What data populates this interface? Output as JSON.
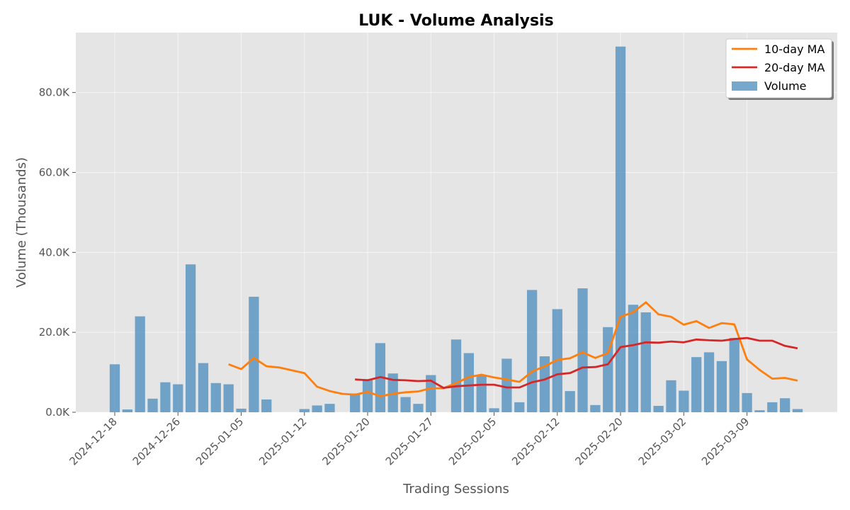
{
  "chart_data": {
    "type": "bar",
    "title": "LUK - Volume Analysis",
    "xlabel": "Trading Sessions",
    "ylabel": "Volume (Thousands)",
    "ylim": [
      0,
      95000
    ],
    "yticks": [
      0,
      20000,
      40000,
      60000,
      80000
    ],
    "ytick_labels": [
      "0.0K",
      "20.0K",
      "40.0K",
      "60.0K",
      "80.0K"
    ],
    "xticks": [
      {
        "index": 0,
        "label": "2024-12-18"
      },
      {
        "index": 5,
        "label": "2024-12-26"
      },
      {
        "index": 10,
        "label": "2025-01-05"
      },
      {
        "index": 15,
        "label": "2025-01-12"
      },
      {
        "index": 20,
        "label": "2025-01-20"
      },
      {
        "index": 25,
        "label": "2025-01-27"
      },
      {
        "index": 30,
        "label": "2025-02-05"
      },
      {
        "index": 35,
        "label": "2025-02-12"
      },
      {
        "index": 40,
        "label": "2025-02-20"
      },
      {
        "index": 45,
        "label": "2025-03-02"
      },
      {
        "index": 50,
        "label": "2025-03-09"
      }
    ],
    "grid": true,
    "legend_position": "top-right",
    "series": [
      {
        "name": "Volume",
        "kind": "bar",
        "color": "#4f8fc0",
        "values": [
          12000,
          700,
          24000,
          3400,
          7500,
          7000,
          37000,
          12300,
          7300,
          7000,
          900,
          28900,
          3200,
          0,
          0,
          800,
          1700,
          2100,
          0,
          4700,
          8300,
          17300,
          9700,
          3800,
          2100,
          9300,
          0,
          18200,
          14800,
          9200,
          1000,
          13400,
          2500,
          30600,
          14000,
          25800,
          5300,
          31000,
          1800,
          21300,
          91500,
          26900,
          25000,
          1600,
          8000,
          5400,
          13800,
          15000,
          12800,
          18600,
          4800,
          500,
          2500,
          3500,
          800
        ]
      },
      {
        "name": "10-day MA",
        "kind": "line",
        "color": "#ff7f0e",
        "values": [
          null,
          null,
          null,
          null,
          null,
          null,
          null,
          null,
          null,
          12000,
          10800,
          13600,
          11500,
          11200,
          10500,
          9800,
          6400,
          5300,
          4600,
          4400,
          5100,
          4000,
          4600,
          5000,
          5200,
          6000,
          6000,
          7300,
          8800,
          9400,
          8700,
          8200,
          7600,
          10200,
          11500,
          13100,
          13500,
          15000,
          13600,
          14800,
          23900,
          25000,
          27500,
          24500,
          23900,
          21900,
          22800,
          21100,
          22300,
          22000,
          13200,
          10600,
          8400,
          8600,
          7900
        ]
      },
      {
        "name": "20-day MA",
        "kind": "line",
        "color": "#d62728",
        "values": [
          null,
          null,
          null,
          null,
          null,
          null,
          null,
          null,
          null,
          null,
          null,
          null,
          null,
          null,
          null,
          null,
          null,
          null,
          null,
          8200,
          8000,
          8800,
          8100,
          8000,
          7800,
          7900,
          6100,
          6500,
          6700,
          6900,
          6900,
          6200,
          6200,
          7500,
          8200,
          9500,
          9800,
          11200,
          11300,
          12000,
          16300,
          16800,
          17500,
          17400,
          17700,
          17500,
          18200,
          18000,
          17900,
          18300,
          18600,
          17900,
          17900,
          16600,
          16000
        ]
      }
    ]
  }
}
